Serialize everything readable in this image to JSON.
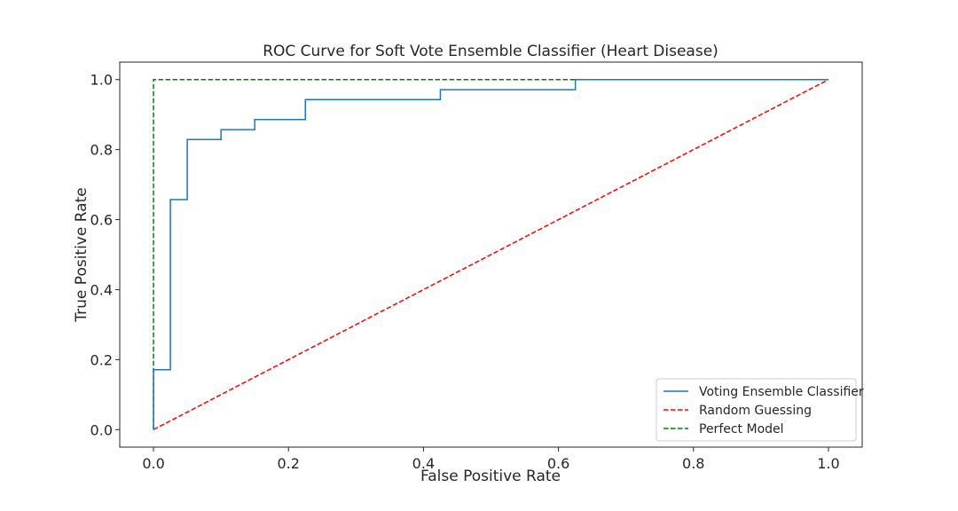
{
  "chart_data": {
    "type": "line",
    "title": "ROC Curve for Soft Vote Ensemble Classifier (Heart Disease)",
    "xlabel": "False Positive Rate",
    "ylabel": "True Positive Rate",
    "xlim": [
      -0.05,
      1.05
    ],
    "ylim": [
      -0.05,
      1.05
    ],
    "xticks": [
      0.0,
      0.2,
      0.4,
      0.6,
      0.8,
      1.0
    ],
    "yticks": [
      0.0,
      0.2,
      0.4,
      0.6,
      0.8,
      1.0
    ],
    "xtick_labels": [
      "0.0",
      "0.2",
      "0.4",
      "0.6",
      "0.8",
      "1.0"
    ],
    "ytick_labels": [
      "0.0",
      "0.2",
      "0.4",
      "0.6",
      "0.8",
      "1.0"
    ],
    "grid": false,
    "legend_position": "lower-right",
    "series": [
      {
        "name": "Voting Ensemble Classifier",
        "color": "#1f77b4",
        "style": "solid",
        "x": [
          0.0,
          0.0,
          0.025,
          0.025,
          0.05,
          0.05,
          0.1,
          0.1,
          0.15,
          0.15,
          0.225,
          0.225,
          0.425,
          0.425,
          0.625,
          0.625,
          1.0
        ],
        "y": [
          0.0,
          0.171,
          0.171,
          0.657,
          0.657,
          0.829,
          0.829,
          0.857,
          0.857,
          0.886,
          0.886,
          0.943,
          0.943,
          0.971,
          0.971,
          1.0,
          1.0
        ]
      },
      {
        "name": "Random Guessing",
        "color": "#ff0000",
        "style": "dashed",
        "x": [
          0.0,
          1.0
        ],
        "y": [
          0.0,
          1.0
        ]
      },
      {
        "name": "Perfect Model",
        "color": "#008000",
        "style": "dashed",
        "x": [
          0.0,
          0.0,
          1.0
        ],
        "y": [
          0.0,
          1.0,
          1.0
        ]
      }
    ]
  }
}
